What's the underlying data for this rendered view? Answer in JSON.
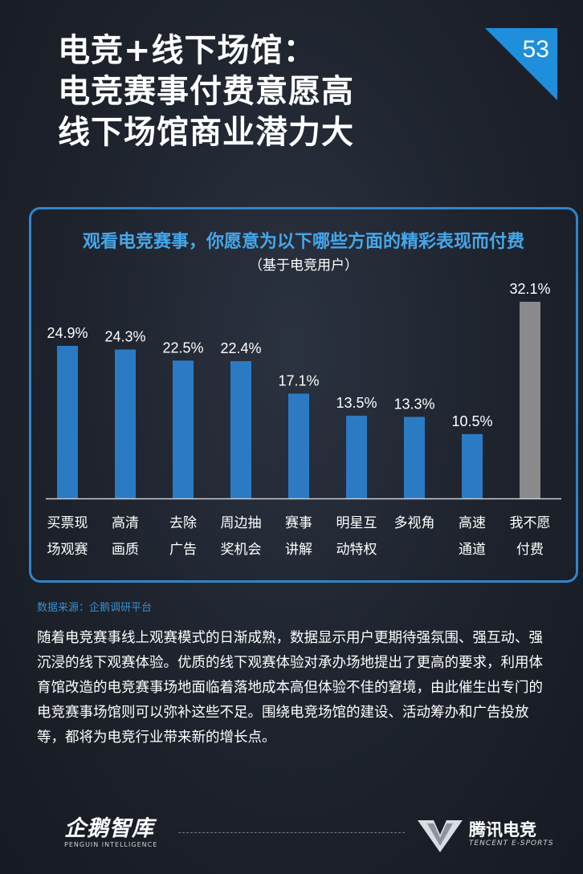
{
  "header": {
    "title_lines": [
      "电竞+线下场馆：",
      "电竞赛事付费意愿高",
      "线下场馆商业潜力大"
    ],
    "page_number": "53"
  },
  "chart_data": {
    "type": "bar",
    "title": "观看电竞赛事，你愿意为以下哪些方面的精彩表现而付费",
    "subtitle": "（基于电竞用户）",
    "categories": [
      [
        "买票现",
        "场观赛"
      ],
      [
        "高清",
        "画质"
      ],
      [
        "去除",
        "广告"
      ],
      [
        "周边抽",
        "奖机会"
      ],
      [
        "赛事",
        "讲解"
      ],
      [
        "明星互",
        "动特权"
      ],
      [
        "多视角"
      ],
      [
        "高速",
        "通道"
      ],
      [
        "我不愿",
        "付费"
      ]
    ],
    "values": [
      24.9,
      24.3,
      22.5,
      22.4,
      17.1,
      13.5,
      13.3,
      10.5,
      32.1
    ],
    "value_labels": [
      "24.9%",
      "24.3%",
      "22.5%",
      "22.4%",
      "17.1%",
      "13.5%",
      "13.3%",
      "10.5%",
      "32.1%"
    ],
    "unit": "%",
    "bar_colors": [
      "#2b7bc4",
      "#2b7bc4",
      "#2b7bc4",
      "#2b7bc4",
      "#2b7bc4",
      "#2b7bc4",
      "#2b7bc4",
      "#2b7bc4",
      "#8a8a8d"
    ],
    "ylim": [
      0,
      32.1
    ],
    "grid": false,
    "xlabel": "",
    "ylabel": ""
  },
  "source": "数据来源：企鹅调研平台",
  "body_text": "随着电竞赛事线上观赛模式的日渐成熟，数据显示用户更期待强氛围、强互动、强沉浸的线下观赛体验。优质的线下观赛体验对承办场地提出了更高的要求，利用体育馆改造的电竞赛事场地面临着落地成本高但体验不佳的窘境，由此催生出专门的电竞赛事场馆则可以弥补这些不足。围绕电竞场馆的建设、活动筹办和广告投放等，都将为电竞行业带来新的增长点。",
  "footer": {
    "left_logo_text": "企鹅智库",
    "left_logo_sub": "PENGUIN INTELLIGENCE",
    "right_logo_text": "腾讯电竞",
    "right_logo_sub": "TENCENT E-SPORTS"
  },
  "colors": {
    "accent_blue": "#2f86c8",
    "bar_blue": "#2b7bc4",
    "bar_gray": "#8a8a8d",
    "badge_blue": "#1f8fdc"
  }
}
